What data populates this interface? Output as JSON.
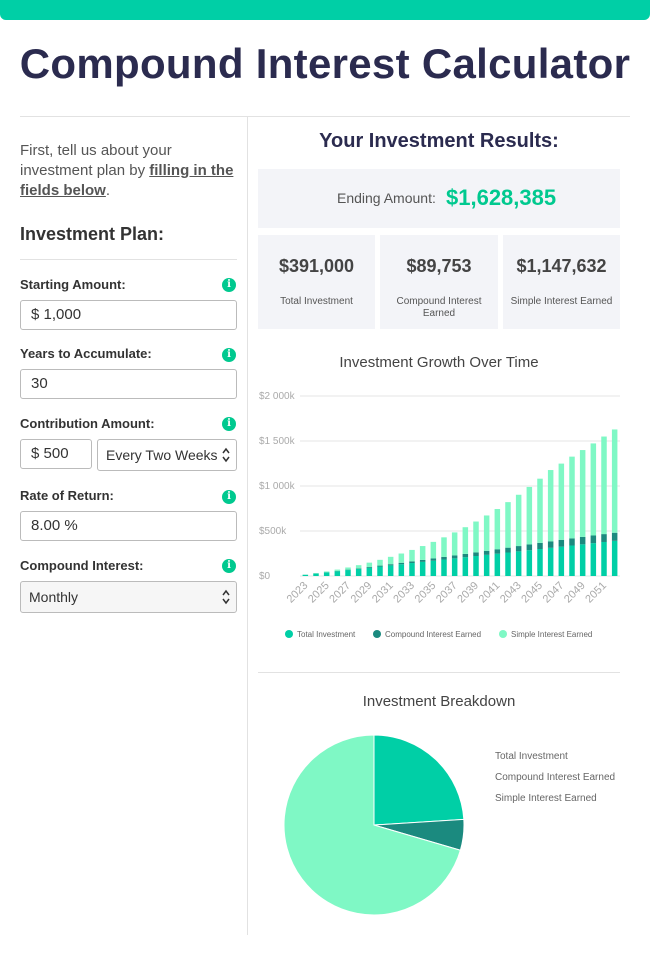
{
  "page": {
    "title": "Compound Interest Calculator",
    "accent_color": "#00cfa6"
  },
  "form": {
    "intro_text": "First, tell us about your investment plan by ",
    "intro_link": "filling in the fields below",
    "intro_end": ".",
    "plan_title": "Investment Plan:",
    "info_glyph": "i",
    "starting_amount": {
      "label": "Starting Amount:",
      "value": "$ 1,000"
    },
    "years": {
      "label": "Years to Accumulate:",
      "value": "30"
    },
    "contribution": {
      "label": "Contribution Amount:",
      "value": "$ 500",
      "frequency": "Every Two Weeks"
    },
    "rate": {
      "label": "Rate of Return:",
      "value": "8.00 %"
    },
    "compound": {
      "label": "Compound Interest:",
      "value": "Monthly"
    }
  },
  "results": {
    "title": "Your Investment Results:",
    "ending_label": "Ending Amount:",
    "ending_value": "$1,628,385",
    "total_investment": {
      "value": "$391,000",
      "label": "Total Investment"
    },
    "compound_interest": {
      "value": "$89,753",
      "label": "Compound Interest Earned"
    },
    "simple_interest": {
      "value": "$1,147,632",
      "label": "Simple Interest Earned"
    }
  },
  "chart_data": [
    {
      "type": "bar",
      "title": "Investment Growth Over Time",
      "stacked": true,
      "x": [
        2023,
        2024,
        2025,
        2026,
        2027,
        2028,
        2029,
        2030,
        2031,
        2032,
        2033,
        2034,
        2035,
        2036,
        2037,
        2038,
        2039,
        2040,
        2041,
        2042,
        2043,
        2044,
        2045,
        2046,
        2047,
        2048,
        2049,
        2050,
        2051,
        2052
      ],
      "tick_labels": [
        "2023",
        "2025",
        "2027",
        "2029",
        "2031",
        "2033",
        "2035",
        "2037",
        "2039",
        "2041",
        "2043",
        "2045",
        "2047",
        "2049",
        "2051"
      ],
      "y_tick_labels": [
        "$0",
        "$500k",
        "$1 000k",
        "$1 500k",
        "$2 000k"
      ],
      "ylim": [
        0,
        2000000
      ],
      "grid": true,
      "legend_position": "bottom",
      "series": [
        {
          "name": "Total Investment",
          "color": "#00cfa6",
          "values": [
            14000,
            27000,
            40000,
            53000,
            66000,
            79000,
            92000,
            105000,
            118000,
            131000,
            144000,
            157000,
            170000,
            183000,
            196000,
            209000,
            222000,
            235000,
            248000,
            261000,
            274000,
            287000,
            300000,
            313000,
            326000,
            339000,
            352000,
            365000,
            378000,
            391000
          ]
        },
        {
          "name": "Compound Interest Earned",
          "color": "#1b8a7f",
          "values": [
            500,
            1100,
            2000,
            3200,
            4700,
            6400,
            8400,
            10600,
            13100,
            15800,
            18700,
            21800,
            25100,
            28600,
            32300,
            36200,
            40300,
            44600,
            49100,
            53800,
            58700,
            63800,
            68300,
            72300,
            75900,
            79300,
            82300,
            85100,
            87600,
            89753
          ]
        },
        {
          "name": "Simple Interest Earned",
          "color": "#7ff8c5",
          "values": [
            1500,
            4000,
            8500,
            15000,
            24000,
            35000,
            48000,
            64000,
            82000,
            103000,
            127000,
            154000,
            184000,
            218000,
            256000,
            297000,
            343000,
            393000,
            447000,
            506000,
            570000,
            639000,
            713000,
            792000,
            847000,
            908000,
            965000,
            1023000,
            1084000,
            1147632
          ]
        }
      ]
    },
    {
      "type": "pie",
      "title": "Investment Breakdown",
      "categories": [
        "Total Investment",
        "Compound Interest Earned",
        "Simple Interest Earned"
      ],
      "values": [
        391000,
        89753,
        1147632
      ],
      "colors": [
        "#00cfa6",
        "#1b8a7f",
        "#7ff8c5"
      ],
      "legend_position": "right"
    }
  ]
}
